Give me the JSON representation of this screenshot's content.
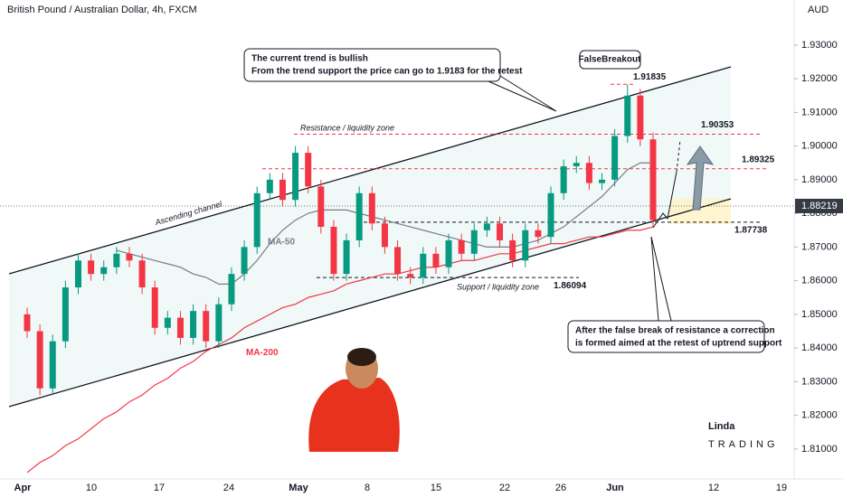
{
  "chart_data": {
    "type": "candlestick",
    "title": "British Pound / Australian Dollar, 4h, FXCM",
    "currency": "AUD",
    "ylim": [
      1.8011,
      1.9434
    ],
    "yticks": [
      {
        "value": 1.93,
        "label": "1.93000"
      },
      {
        "value": 1.92,
        "label": "1.92000"
      },
      {
        "value": 1.91,
        "label": "1.91000"
      },
      {
        "value": 1.9,
        "label": "1.90000"
      },
      {
        "value": 1.89,
        "label": "1.89000"
      },
      {
        "value": 1.88,
        "label": "1.88000"
      },
      {
        "value": 1.87,
        "label": "1.87000"
      },
      {
        "value": 1.86,
        "label": "1.86000"
      },
      {
        "value": 1.85,
        "label": "1.85000"
      },
      {
        "value": 1.84,
        "label": "1.84000"
      },
      {
        "value": 1.83,
        "label": "1.83000"
      },
      {
        "value": 1.82,
        "label": "1.82000"
      },
      {
        "value": 1.81,
        "label": "1.81000"
      }
    ],
    "xtick_labels": [
      "Apr",
      "10",
      "17",
      "24",
      "May",
      "8",
      "15",
      "22",
      "26",
      "Jun",
      "12",
      "19"
    ],
    "up_color": "#089981",
    "down_color": "#f23645",
    "open": [
      1.85,
      1.845,
      1.828,
      1.842,
      1.858,
      1.866,
      1.862,
      1.864,
      1.868,
      1.866,
      1.858,
      1.846,
      1.849,
      1.843,
      1.851,
      1.842,
      1.853,
      1.862,
      1.87,
      1.886,
      1.89,
      1.884,
      1.898,
      1.888,
      1.876,
      1.862,
      1.872,
      1.886,
      1.877,
      1.87,
      1.862,
      1.861,
      1.868,
      1.864,
      1.872,
      1.868,
      1.875,
      1.877,
      1.872,
      1.866,
      1.875,
      1.873,
      1.886,
      1.894,
      1.895,
      1.889,
      1.89,
      1.903,
      1.915,
      1.902
    ],
    "high": [
      1.852,
      1.847,
      1.844,
      1.86,
      1.868,
      1.868,
      1.866,
      1.87,
      1.87,
      1.868,
      1.86,
      1.851,
      1.851,
      1.853,
      1.853,
      1.855,
      1.864,
      1.872,
      1.888,
      1.892,
      1.892,
      1.9,
      1.9,
      1.89,
      1.878,
      1.874,
      1.888,
      1.888,
      1.879,
      1.872,
      1.864,
      1.87,
      1.87,
      1.874,
      1.874,
      1.877,
      1.879,
      1.879,
      1.874,
      1.877,
      1.877,
      1.888,
      1.896,
      1.897,
      1.897,
      1.892,
      1.905,
      1.9183,
      1.917,
      1.904
    ],
    "low": [
      1.843,
      1.826,
      1.826,
      1.84,
      1.856,
      1.86,
      1.86,
      1.862,
      1.864,
      1.856,
      1.844,
      1.844,
      1.841,
      1.841,
      1.84,
      1.84,
      1.851,
      1.86,
      1.868,
      1.884,
      1.882,
      1.882,
      1.886,
      1.874,
      1.86,
      1.86,
      1.87,
      1.875,
      1.868,
      1.86,
      1.859,
      1.859,
      1.862,
      1.862,
      1.866,
      1.866,
      1.873,
      1.87,
      1.864,
      1.864,
      1.871,
      1.871,
      1.884,
      1.892,
      1.887,
      1.887,
      1.888,
      1.901,
      1.9,
      1.876
    ],
    "close": [
      1.845,
      1.828,
      1.842,
      1.858,
      1.866,
      1.862,
      1.864,
      1.868,
      1.866,
      1.858,
      1.846,
      1.849,
      1.843,
      1.851,
      1.842,
      1.853,
      1.862,
      1.87,
      1.886,
      1.89,
      1.884,
      1.898,
      1.888,
      1.876,
      1.862,
      1.872,
      1.886,
      1.877,
      1.87,
      1.862,
      1.861,
      1.868,
      1.864,
      1.872,
      1.868,
      1.875,
      1.877,
      1.872,
      1.866,
      1.875,
      1.873,
      1.886,
      1.894,
      1.895,
      1.889,
      1.89,
      1.903,
      1.915,
      1.902,
      1.878
    ],
    "series": [
      {
        "name": "MA-50",
        "color": "#787b86",
        "values": [
          null,
          null,
          null,
          null,
          null,
          null,
          null,
          1.869,
          1.868,
          1.867,
          1.866,
          1.865,
          1.864,
          1.862,
          1.861,
          1.859,
          1.859,
          1.862,
          1.866,
          1.871,
          1.875,
          1.878,
          1.88,
          1.881,
          1.881,
          1.881,
          1.88,
          1.879,
          1.878,
          1.877,
          1.876,
          1.875,
          1.874,
          1.873,
          1.872,
          1.871,
          1.87,
          1.87,
          1.87,
          1.871,
          1.872,
          1.874,
          1.876,
          1.879,
          1.882,
          1.885,
          1.889,
          1.893,
          1.895,
          1.895
        ]
      },
      {
        "name": "MA-200",
        "color": "#f23645",
        "values": [
          1.803,
          1.806,
          1.808,
          1.811,
          1.813,
          1.816,
          1.819,
          1.821,
          1.824,
          1.826,
          1.829,
          1.831,
          1.834,
          1.836,
          1.839,
          1.841,
          1.843,
          1.846,
          1.848,
          1.85,
          1.852,
          1.853,
          1.855,
          1.856,
          1.857,
          1.859,
          1.86,
          1.861,
          1.862,
          1.862,
          1.863,
          1.864,
          1.864,
          1.865,
          1.866,
          1.866,
          1.867,
          1.868,
          1.868,
          1.869,
          1.87,
          1.871,
          1.871,
          1.872,
          1.873,
          1.873,
          1.874,
          1.875,
          1.875,
          1.876
        ]
      }
    ],
    "current_price": 1.88219,
    "levels": [
      1.91835,
      1.90353,
      1.89325,
      1.87738,
      1.86094
    ],
    "annotations": {
      "trend_line1": "The current trend is bullish",
      "trend_line2": "From the trend support the price can go to 1.9183 for the retest",
      "false_breakout": "FalseBreakout",
      "resistance": "Resistance / liquidity zone",
      "channel": "Ascending channel",
      "support": "Support / liquidity zone",
      "correction_line1": "After the false break of resistance a correction",
      "correction_line2": "is formed aimed at the retest of uptrend support"
    },
    "logo": {
      "top": "Linda",
      "bottom": "TRADING"
    }
  }
}
